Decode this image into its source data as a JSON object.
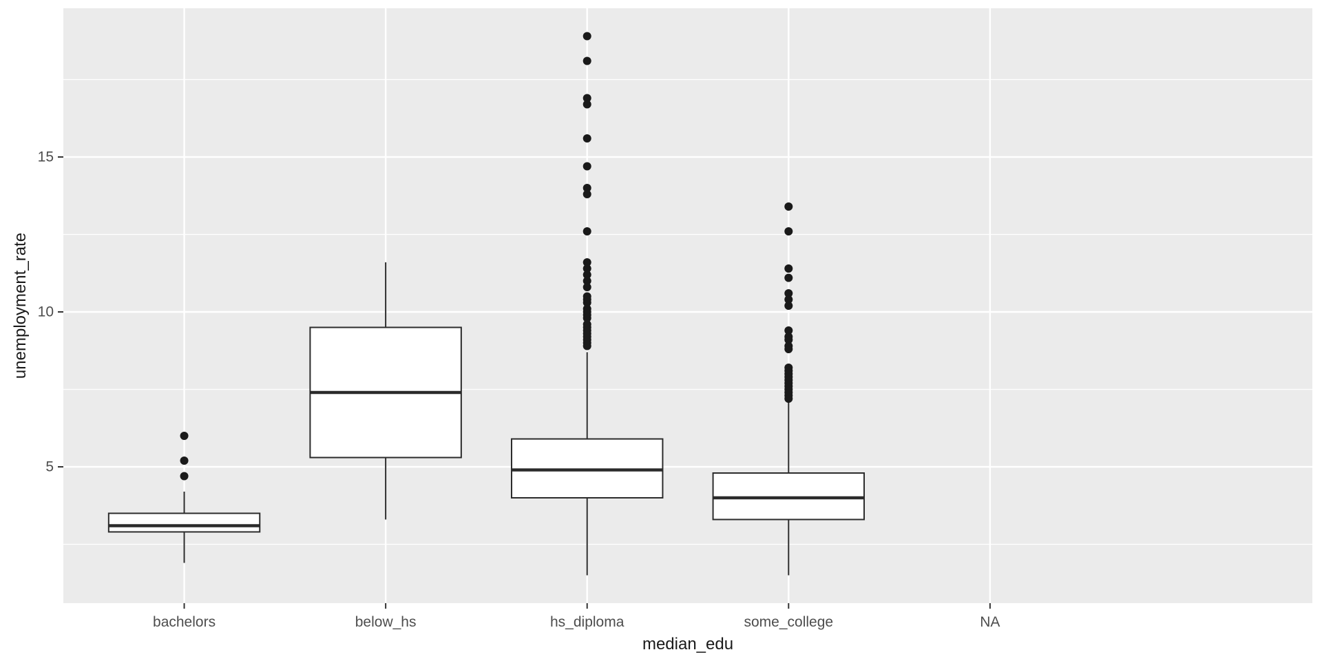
{
  "chart_data": {
    "type": "boxplot",
    "title": "",
    "xlabel": "median_edu",
    "ylabel": "unemployment_rate",
    "categories": [
      "bachelors",
      "below_hs",
      "hs_diploma",
      "some_college",
      "NA"
    ],
    "ylim": [
      0.6,
      19.8
    ],
    "yticks": [
      5,
      10,
      15
    ],
    "ytick_labels": [
      "5",
      "10",
      "15"
    ],
    "yticks_minor": [
      2.5,
      7.5,
      12.5,
      17.5
    ],
    "legend": "none",
    "grid": "on",
    "panel_bg": "#EBEBEB",
    "grid_color": "#FFFFFF",
    "box_fill": "#FFFFFF",
    "box_stroke": "#2b2b2b",
    "outlier_color": "#1a1a1a",
    "tick_color": "#333333",
    "tick_label_color": "#4D4D4D",
    "series": [
      {
        "category": "bachelors",
        "lower_whisker": 1.9,
        "q1": 2.9,
        "median": 3.1,
        "q3": 3.5,
        "upper_whisker": 4.2,
        "outliers": [
          6.0,
          5.2,
          4.7
        ]
      },
      {
        "category": "below_hs",
        "lower_whisker": 3.3,
        "q1": 5.3,
        "median": 7.4,
        "q3": 9.5,
        "upper_whisker": 11.6,
        "outliers": []
      },
      {
        "category": "hs_diploma",
        "lower_whisker": 1.5,
        "q1": 4.0,
        "median": 4.9,
        "q3": 5.9,
        "upper_whisker": 8.7,
        "outliers": [
          18.9,
          18.1,
          16.9,
          16.7,
          15.6,
          14.7,
          14.0,
          13.8,
          12.6,
          11.6,
          11.4,
          11.2,
          11.0,
          10.8,
          10.5,
          10.4,
          10.3,
          10.1,
          10.0,
          9.9,
          9.8,
          9.6,
          9.5,
          9.4,
          9.3,
          9.2,
          9.1,
          9.0,
          8.9
        ]
      },
      {
        "category": "some_college",
        "lower_whisker": 1.5,
        "q1": 3.3,
        "median": 4.0,
        "q3": 4.8,
        "upper_whisker": 7.1,
        "outliers": [
          13.4,
          12.6,
          11.4,
          11.1,
          10.6,
          10.4,
          10.2,
          9.4,
          9.2,
          9.1,
          8.9,
          8.8,
          8.2,
          8.1,
          8.0,
          7.9,
          7.8,
          7.7,
          7.6,
          7.5,
          7.4,
          7.3,
          7.2
        ]
      },
      {
        "category": "NA",
        "lower_whisker": null,
        "q1": null,
        "median": null,
        "q3": null,
        "upper_whisker": null,
        "outliers": []
      }
    ]
  }
}
